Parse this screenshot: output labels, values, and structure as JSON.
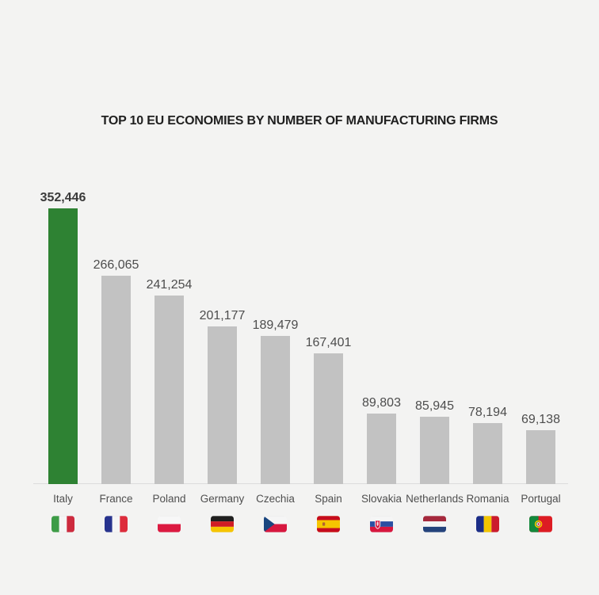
{
  "title": "TOP 10 EU ECONOMIES BY NUMBER OF MANUFACTURING FIRMS",
  "colors": {
    "background": "#f3f3f2",
    "bar_default": "#c2c2c2",
    "bar_highlight": "#2e8233",
    "title_text": "#1f1f1f",
    "value_text": "#4d4d4d",
    "value_text_highlight": "#3a3a3a",
    "category_text": "#4f4f4f",
    "baseline": "#dcdcdc"
  },
  "chart_data": {
    "type": "bar",
    "orientation": "vertical",
    "title": "TOP 10 EU ECONOMIES BY NUMBER OF MANUFACTURING FIRMS",
    "categories": [
      "Italy",
      "France",
      "Poland",
      "Germany",
      "Czechia",
      "Spain",
      "Slovakia",
      "Netherlands",
      "Romania",
      "Portugal"
    ],
    "values": [
      352446,
      266065,
      241254,
      201177,
      189479,
      167401,
      89803,
      85945,
      78194,
      69138
    ],
    "value_labels": [
      "352,446",
      "266,065",
      "241,254",
      "201,177",
      "189,479",
      "167,401",
      "89,803",
      "85,945",
      "78,194",
      "69,138"
    ],
    "flag_icons": [
      "italy-flag-icon",
      "france-flag-icon",
      "poland-flag-icon",
      "germany-flag-icon",
      "czechia-flag-icon",
      "spain-flag-icon",
      "slovakia-flag-icon",
      "netherlands-flag-icon",
      "romania-flag-icon",
      "portugal-flag-icon"
    ],
    "highlighted_index": 0,
    "xlabel": "",
    "ylabel": "",
    "ylim": [
      0,
      352446
    ],
    "grid": false,
    "legend": false
  }
}
